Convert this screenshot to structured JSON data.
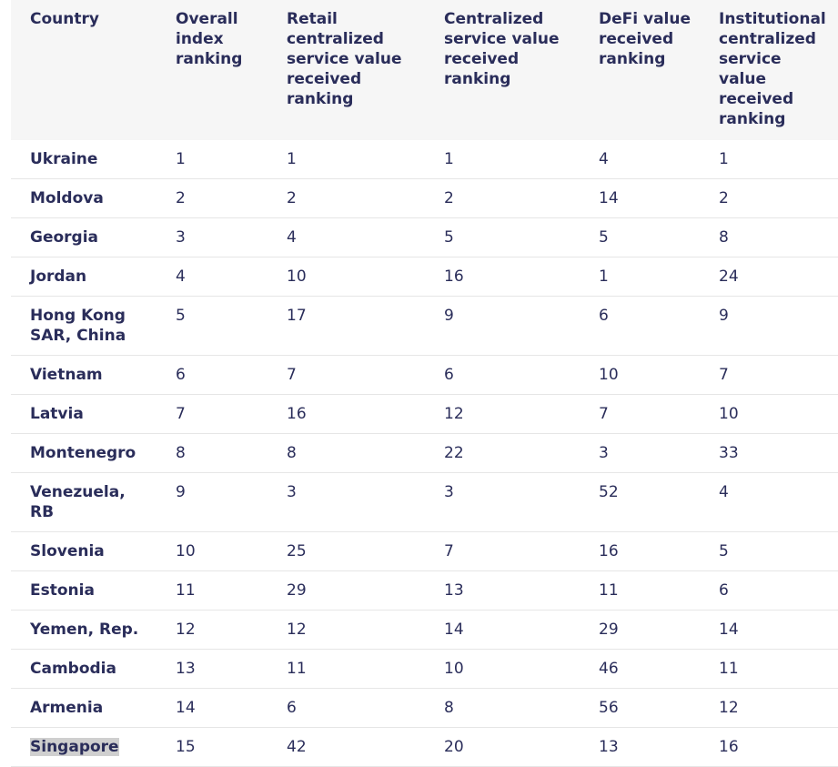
{
  "table": {
    "header": [
      "Country",
      "Overall index ranking",
      "Retail centralized service value received ranking",
      "Centralized service value received ranking",
      "DeFi value received ranking",
      "Institutional centralized service value received ranking"
    ],
    "rows": [
      [
        "Ukraine",
        1,
        1,
        1,
        4,
        1
      ],
      [
        "Moldova",
        2,
        2,
        2,
        14,
        2
      ],
      [
        "Georgia",
        3,
        4,
        5,
        5,
        8
      ],
      [
        "Jordan",
        4,
        10,
        16,
        1,
        24
      ],
      [
        "Hong Kong SAR, China",
        5,
        17,
        9,
        6,
        9
      ],
      [
        "Vietnam",
        6,
        7,
        6,
        10,
        7
      ],
      [
        "Latvia",
        7,
        16,
        12,
        7,
        10
      ],
      [
        "Montenegro",
        8,
        8,
        22,
        3,
        33
      ],
      [
        "Venezuela, RB",
        9,
        3,
        3,
        52,
        4
      ],
      [
        "Slovenia",
        10,
        25,
        7,
        16,
        5
      ],
      [
        "Estonia",
        11,
        29,
        13,
        11,
        6
      ],
      [
        "Yemen, Rep.",
        12,
        12,
        14,
        29,
        14
      ],
      [
        "Cambodia",
        13,
        11,
        10,
        46,
        11
      ],
      [
        "Armenia",
        14,
        6,
        8,
        56,
        12
      ],
      [
        "Singapore",
        15,
        42,
        20,
        13,
        16
      ]
    ]
  }
}
